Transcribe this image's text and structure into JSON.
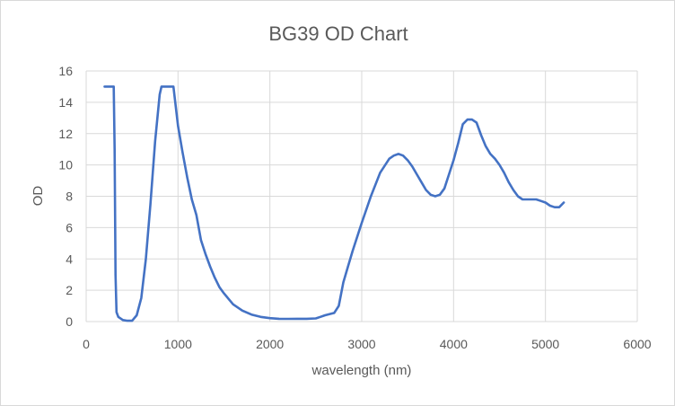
{
  "chart_data": {
    "type": "line",
    "title": "BG39 OD Chart",
    "xlabel": "wavelength (nm)",
    "ylabel": "OD",
    "xlim": [
      0,
      6000
    ],
    "ylim": [
      0,
      16
    ],
    "xticks": [
      0,
      1000,
      2000,
      3000,
      4000,
      5000,
      6000
    ],
    "yticks": [
      0,
      2,
      4,
      6,
      8,
      10,
      12,
      14,
      16
    ],
    "grid": true,
    "legend": "none",
    "series": [
      {
        "name": "BG39",
        "color": "#4472c4",
        "x": [
          200,
          250,
          300,
          310,
          320,
          330,
          350,
          400,
          450,
          500,
          550,
          600,
          650,
          700,
          750,
          800,
          820,
          850,
          900,
          950,
          1000,
          1050,
          1100,
          1150,
          1200,
          1250,
          1300,
          1350,
          1400,
          1450,
          1500,
          1600,
          1700,
          1800,
          1900,
          2000,
          2100,
          2200,
          2300,
          2400,
          2500,
          2550,
          2600,
          2700,
          2750,
          2800,
          2850,
          2900,
          3000,
          3100,
          3200,
          3300,
          3350,
          3400,
          3450,
          3500,
          3550,
          3600,
          3650,
          3700,
          3750,
          3800,
          3850,
          3900,
          3950,
          4000,
          4050,
          4100,
          4150,
          4200,
          4250,
          4300,
          4350,
          4400,
          4450,
          4500,
          4550,
          4600,
          4650,
          4700,
          4750,
          4800,
          4850,
          4900,
          4950,
          5000,
          5050,
          5100,
          5150,
          5200
        ],
        "y": [
          15,
          15,
          15,
          11,
          3,
          0.6,
          0.3,
          0.1,
          0.05,
          0.05,
          0.4,
          1.5,
          4,
          7.5,
          11.5,
          14.5,
          15,
          15,
          15,
          15,
          12.5,
          10.8,
          9.2,
          7.8,
          6.8,
          5.2,
          4.3,
          3.5,
          2.8,
          2.2,
          1.8,
          1.1,
          0.7,
          0.45,
          0.3,
          0.22,
          0.18,
          0.17,
          0.18,
          0.18,
          0.2,
          0.3,
          0.4,
          0.55,
          1,
          2.5,
          3.5,
          4.5,
          6.3,
          8.0,
          9.5,
          10.4,
          10.6,
          10.7,
          10.6,
          10.3,
          9.9,
          9.4,
          8.9,
          8.4,
          8.1,
          8.0,
          8.1,
          8.5,
          9.4,
          10.3,
          11.4,
          12.6,
          12.9,
          12.9,
          12.7,
          11.9,
          11.2,
          10.7,
          10.4,
          10.0,
          9.5,
          8.9,
          8.4,
          8.0,
          7.8,
          7.8,
          7.8,
          7.8,
          7.7,
          7.6,
          7.4,
          7.3,
          7.3,
          7.6
        ]
      }
    ]
  }
}
